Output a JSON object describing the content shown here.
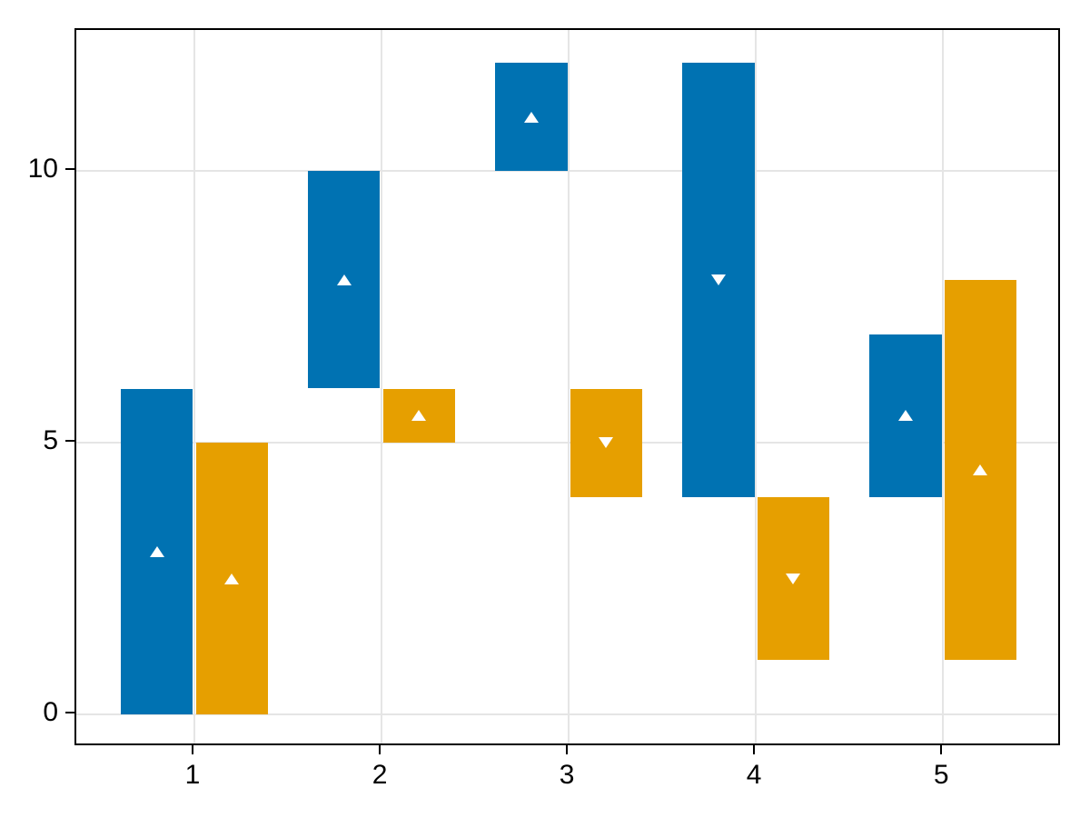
{
  "chart_data": {
    "type": "bar",
    "subtype": "ranged-dodged-bars-with-direction-markers",
    "title": "",
    "xlabel": "",
    "ylabel": "",
    "x": [
      1,
      2,
      3,
      4,
      5
    ],
    "series": [
      {
        "name": "blue-series",
        "color": "#0072B2",
        "bar_low": [
          0,
          6,
          10,
          4,
          4
        ],
        "bar_high": [
          6,
          10,
          12,
          12,
          7
        ],
        "marker_value": [
          3,
          8,
          11,
          8,
          5.5
        ],
        "marker_direction": [
          "up",
          "up",
          "up",
          "down",
          "up"
        ],
        "dodge_offset": -0.2
      },
      {
        "name": "orange-series",
        "color": "#E69F00",
        "bar_low": [
          0,
          5,
          4,
          1,
          1
        ],
        "bar_high": [
          5,
          6,
          6,
          4,
          8
        ],
        "marker_value": [
          2.5,
          5.5,
          5,
          2.5,
          4.5
        ],
        "marker_direction": [
          "up",
          "up",
          "down",
          "down",
          "up"
        ],
        "dodge_offset": 0.2
      }
    ],
    "bar_width": 0.385,
    "marker_color": "#ffffff",
    "xticks": [
      "1",
      "2",
      "3",
      "4",
      "5"
    ],
    "xtick_values": [
      1,
      2,
      3,
      4,
      5
    ],
    "yticks": [
      "0",
      "5",
      "10"
    ],
    "ytick_values": [
      0,
      5,
      10
    ],
    "xlim": [
      0.369,
      5.635
    ],
    "ylim": [
      -0.6,
      12.6
    ],
    "grid": true,
    "legend_position": "none",
    "colors": {
      "background": "#ffffff",
      "grid_color": "#e5e5e5",
      "spine_color": "#000000",
      "tick_color": "#000000",
      "tick_label_color": "#000000"
    }
  }
}
